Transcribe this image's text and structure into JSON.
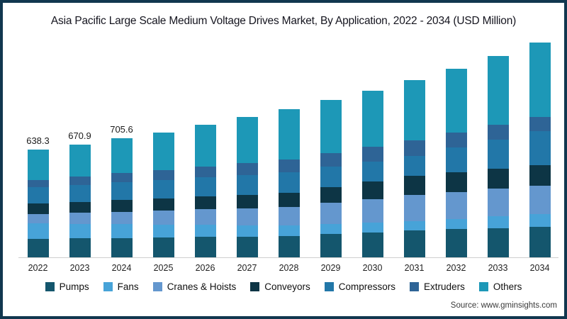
{
  "window": {
    "background": "#ffffff",
    "border_color": "#11374f"
  },
  "title": "Asia Pacific Large Scale Medium Voltage Drives Market, By Application, 2022 - 2034 (USD Million)",
  "source": "Source: www.gminsights.com",
  "chart_data": {
    "type": "bar",
    "stacked": true,
    "unit": "USD Million",
    "title": "Asia Pacific Large Scale Medium Voltage Drives Market, By Application, 2022 - 2034 (USD Million)",
    "xlabel": "",
    "ylabel": "",
    "grid": false,
    "legend_position": "bottom",
    "categories": [
      "2022",
      "2023",
      "2024",
      "2025",
      "2026",
      "2027",
      "2028",
      "2029",
      "2030",
      "2031",
      "2032",
      "2033",
      "2034"
    ],
    "value_labels": [
      "638.3",
      "670.9",
      "705.6",
      "",
      "",
      "",
      "",
      "",
      "",
      "",
      "",
      "",
      ""
    ],
    "totals": [
      638.3,
      670.9,
      705.6,
      743.0,
      786.0,
      832.0,
      879.0,
      937.0,
      988.0,
      1052.0,
      1119.0,
      1194.0,
      1274.0
    ],
    "series": [
      {
        "name": "Pumps",
        "color": "#14566d",
        "values": [
          109.5,
          112.4,
          114.9,
          117.9,
          120.8,
          123.4,
          126.3,
          137.7,
          148.6,
          160.0,
          167.1,
          173.9,
          181.0
        ]
      },
      {
        "name": "Fans",
        "color": "#47a3d8",
        "values": [
          92.6,
          87.6,
          82.9,
          77.9,
          72.8,
          68.2,
          63.2,
          60.2,
          57.7,
          54.7,
          61.9,
          68.6,
          75.8
        ]
      },
      {
        "name": "Cranes & Hoists",
        "color": "#6497ce",
        "values": [
          54.7,
          64.0,
          72.8,
          82.1,
          91.4,
          100.2,
          109.5,
          125.0,
          140.2,
          155.8,
          160.0,
          164.2,
          168.4
        ]
      },
      {
        "name": "Conveyors",
        "color": "#0d3545",
        "values": [
          63.2,
          66.5,
          70.3,
          73.7,
          77.0,
          80.8,
          84.2,
          93.9,
          104.0,
          113.7,
          116.6,
          119.1,
          122.1
        ]
      },
      {
        "name": "Compressors",
        "color": "#2277a8",
        "values": [
          96.8,
          101.0,
          105.3,
          109.5,
          113.7,
          117.9,
          122.1,
          120.8,
          119.1,
          117.9,
          146.1,
          173.9,
          202.1
        ]
      },
      {
        "name": "Extruders",
        "color": "#2e6496",
        "values": [
          42.1,
          47.6,
          53.5,
          58.9,
          64.4,
          70.3,
          75.8,
          81.3,
          87.1,
          92.6,
          89.7,
          87.1,
          84.2
        ]
      },
      {
        "name": "Others",
        "color": "#1d98b7",
        "values": [
          179.4,
          191.8,
          205.9,
          223.0,
          245.9,
          271.2,
          297.9,
          318.1,
          331.3,
          357.3,
          377.6,
          407.2,
          440.4
        ]
      }
    ]
  }
}
